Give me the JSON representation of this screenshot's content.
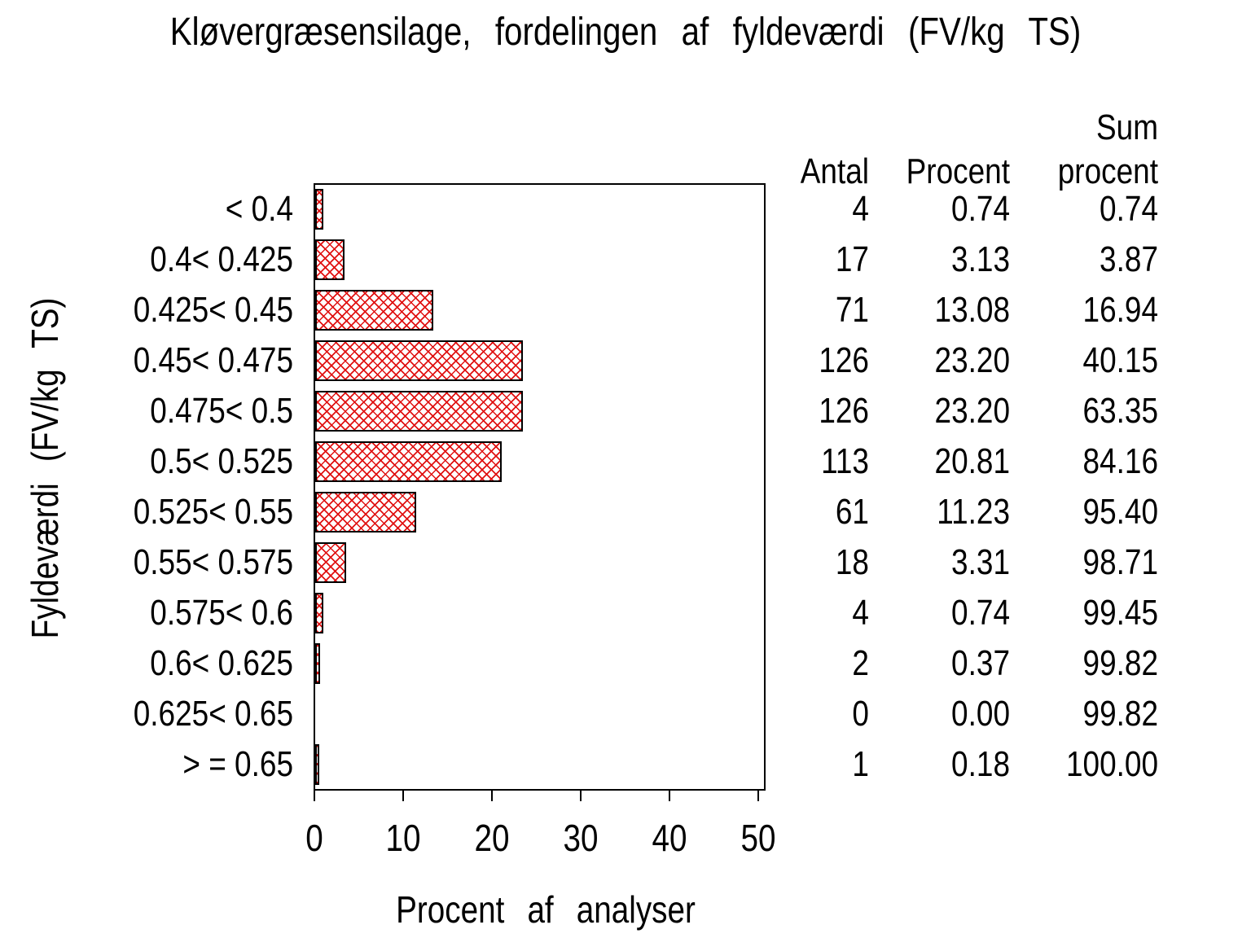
{
  "title": "Kløvergræsensilage, fordelingen af fyldeværdi (FV/kg TS)",
  "chart_data": {
    "type": "bar",
    "orientation": "horizontal",
    "title": "Kløvergræsensilage, fordelingen af fyldeværdi (FV/kg TS)",
    "xlabel": "Procent af analyser",
    "ylabel": "Fyldeværdi (FV/kg TS)",
    "xlim": [
      0,
      51
    ],
    "xticks": [
      "0",
      "10",
      "20",
      "30",
      "40",
      "50"
    ],
    "grid": "off",
    "legend": "none",
    "bar_fill_style": "red-crosshatch-on-white",
    "bar_line_color": "#e01212",
    "bar_border_color": "#000000",
    "categories": [
      "< 0.4",
      "0.4< 0.425",
      "0.425< 0.45",
      "0.45< 0.475",
      "0.475< 0.5",
      "0.5< 0.525",
      "0.525< 0.55",
      "0.55< 0.575",
      "0.575< 0.6",
      "0.6< 0.625",
      "0.625< 0.65",
      "> = 0.65"
    ],
    "values": [
      0.74,
      3.13,
      13.08,
      23.2,
      23.2,
      20.81,
      11.23,
      3.31,
      0.74,
      0.37,
      0.0,
      0.18
    ]
  },
  "table": {
    "headers": {
      "antal": "Antal",
      "procent": "Procent",
      "sum_line1": "Sum",
      "sum_line2": "procent"
    },
    "rows": [
      {
        "antal": "4",
        "procent": "0.74",
        "sum": "0.74"
      },
      {
        "antal": "17",
        "procent": "3.13",
        "sum": "3.87"
      },
      {
        "antal": "71",
        "procent": "13.08",
        "sum": "16.94"
      },
      {
        "antal": "126",
        "procent": "23.20",
        "sum": "40.15"
      },
      {
        "antal": "126",
        "procent": "23.20",
        "sum": "63.35"
      },
      {
        "antal": "113",
        "procent": "20.81",
        "sum": "84.16"
      },
      {
        "antal": "61",
        "procent": "11.23",
        "sum": "95.40"
      },
      {
        "antal": "18",
        "procent": "3.31",
        "sum": "98.71"
      },
      {
        "antal": "4",
        "procent": "0.74",
        "sum": "99.45"
      },
      {
        "antal": "2",
        "procent": "0.37",
        "sum": "99.82"
      },
      {
        "antal": "0",
        "procent": "0.00",
        "sum": "99.82"
      },
      {
        "antal": "1",
        "procent": "0.18",
        "sum": "100.00"
      }
    ]
  }
}
